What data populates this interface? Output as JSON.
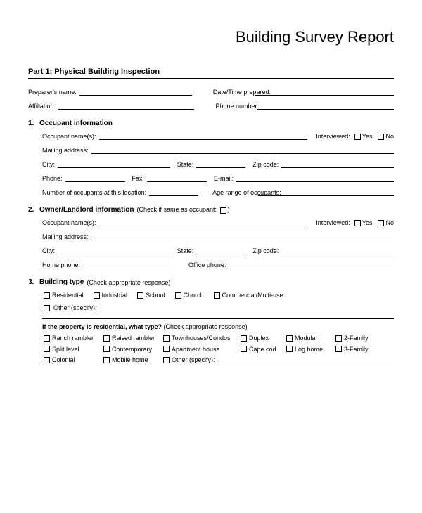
{
  "title": "Building Survey Report",
  "part_header": "Part 1:  Physical Building Inspection",
  "prep": {
    "preparer_label": "Preparer's name:",
    "datetime_label": "Date/Time prepared:",
    "affiliation_label": "Affiliation:",
    "phone_label": "Phone number:"
  },
  "s1": {
    "num": "1.",
    "title": "Occupant information",
    "occupant_names": "Occupant name(s):",
    "interviewed": "Interviewed:",
    "yes": "Yes",
    "no": "No",
    "mailing": "Mailing address:",
    "city": "City:",
    "state": "State:",
    "zip": "Zip code:",
    "phone": "Phone:",
    "fax": "Fax:",
    "email": "E-mail:",
    "num_occ": "Number of occupants at this location:",
    "age_range": "Age range of occupants:"
  },
  "s2": {
    "num": "2.",
    "title": "Owner/Landlord information",
    "note": "(Check if same as occupant:",
    "note_close": ")",
    "occupant_names": "Occupant name(s):",
    "interviewed": "Interviewed:",
    "yes": "Yes",
    "no": "No",
    "mailing": "Mailing address:",
    "city": "City:",
    "state": "State:",
    "zip": "Zip code:",
    "home_phone": "Home phone:",
    "office_phone": "Office phone:"
  },
  "s3": {
    "num": "3.",
    "title": "Building type",
    "note": "(Check appropriate response)",
    "types": [
      "Residential",
      "Industrial",
      "School",
      "Church",
      "Commercial/Multi-use"
    ],
    "other": "Other (specify):",
    "res_header": "If the property is residential, what type?",
    "res_note": "(Check appropriate response)",
    "res_row1": [
      "Ranch rambler",
      "Raised rambler",
      "Townhouses/Condos",
      "Duplex",
      "Modular",
      "2-Family"
    ],
    "res_row2": [
      "Split level",
      "Contemporary",
      "Apartment house",
      "Cape cod",
      "Log home",
      "3-Family"
    ],
    "res_row3": [
      "Colonial",
      "Mobile home"
    ],
    "res_other": "Other (specify):"
  }
}
